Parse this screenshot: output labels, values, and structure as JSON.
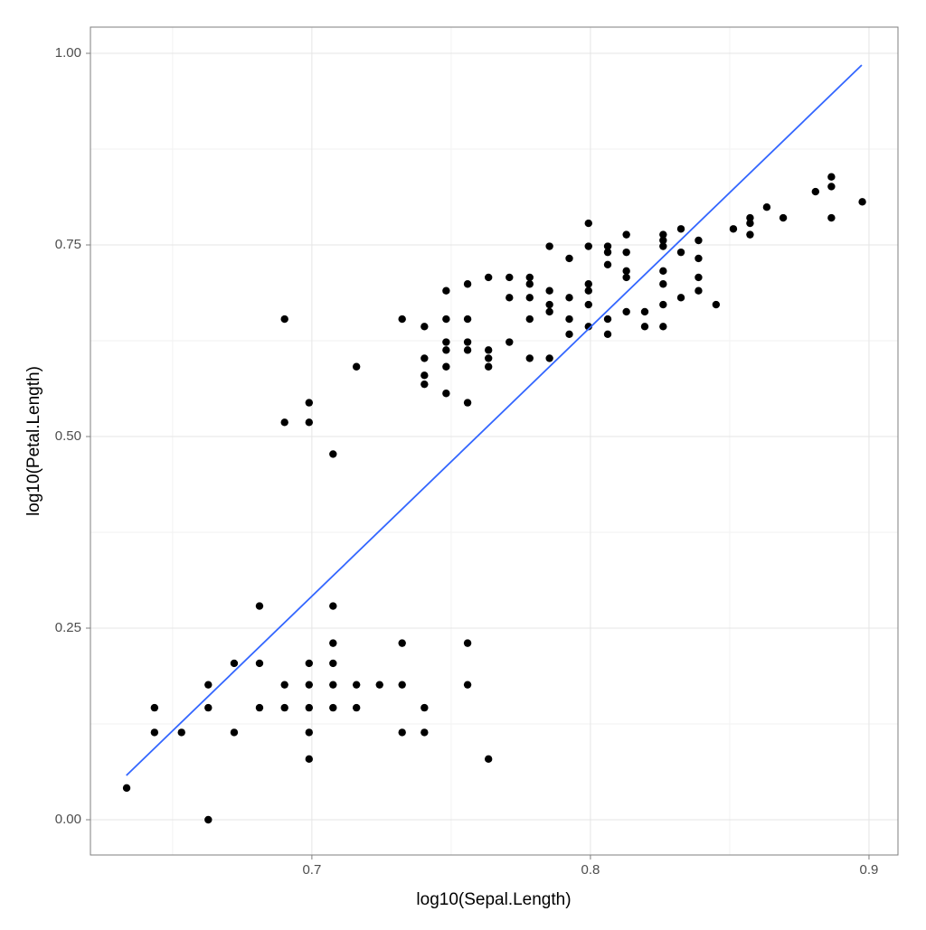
{
  "chart_data": {
    "type": "scatter",
    "x_label": "log10(Sepal.Length)",
    "y_label": "log10(Petal.Length)",
    "xlim": [
      0.6205,
      0.9104
    ],
    "ylim": [
      -0.046,
      1.0342
    ],
    "xticks": [
      0.7,
      0.8,
      0.9
    ],
    "yticks": [
      {
        "value": 0,
        "label": "0.00"
      },
      {
        "value": 0.25,
        "label": "0.25"
      },
      {
        "value": 0.5,
        "label": "0.50"
      },
      {
        "value": 0.75,
        "label": "0.75"
      },
      {
        "value": 1,
        "label": "1.00"
      }
    ],
    "xminor": [
      0.65,
      0.75,
      0.85
    ],
    "yminor": [
      0.125,
      0.375,
      0.625,
      0.875
    ],
    "grid": true,
    "color": "#000000",
    "x": [
      0.7076,
      0.6902,
      0.6721,
      0.6628,
      0.699,
      0.7324,
      0.6628,
      0.699,
      0.6435,
      0.6902,
      0.7324,
      0.6812,
      0.6812,
      0.6335,
      0.7634,
      0.7559,
      0.7324,
      0.7559,
      0.7076,
      0.6628,
      0.7076,
      0.6812,
      0.699,
      0.716,
      0.716,
      0.6721,
      0.7404,
      0.699,
      0.7404,
      0.6435,
      0.699,
      0.6532,
      0.7076,
      0.7076,
      0.7243,
      0.8451,
      0.8062,
      0.8388,
      0.7404,
      0.8129,
      0.7559,
      0.7993,
      0.6902,
      0.8195,
      0.716,
      0.699,
      0.7709,
      0.7782,
      0.7853,
      0.7482,
      0.8261,
      0.7482,
      0.7634,
      0.7924,
      0.7482,
      0.7709,
      0.7853,
      0.7993,
      0.8062,
      0.8195,
      0.8325,
      0.8261,
      0.7782,
      0.7559,
      0.7404,
      0.7404,
      0.7634,
      0.7782,
      0.7324,
      0.8261,
      0.7993,
      0.7482,
      0.7404,
      0.7853,
      0.7634,
      0.699,
      0.7482,
      0.7559,
      0.7924,
      0.7076,
      0.7559,
      0.7993,
      0.7634,
      0.8513,
      0.7993,
      0.8129,
      0.8808,
      0.6902,
      0.8633,
      0.8261,
      0.8573,
      0.8129,
      0.8062,
      0.8325,
      0.7559,
      0.8129,
      0.8865,
      0.8865,
      0.7782,
      0.8388,
      0.7482,
      0.8261,
      0.8573,
      0.7924,
      0.7853,
      0.8062,
      0.8573,
      0.8692,
      0.8976,
      0.7853,
      0.8865,
      0.8062,
      0.7782,
      0.8388,
      0.8261,
      0.8388,
      0.8325,
      0.8261,
      0.7993,
      0.8129,
      0.7924,
      0.7709
    ],
    "values": [
      0.1461,
      0.1461,
      0.1139,
      0.1761,
      0.1461,
      0.2304,
      0.1461,
      0.1761,
      0.1461,
      0.1761,
      0.1761,
      0.2041,
      0.1461,
      0.0414,
      0.0792,
      0.1761,
      0.1139,
      0.2304,
      0.1761,
      0,
      0.2304,
      0.2788,
      0.2041,
      0.1761,
      0.1461,
      0.2041,
      0.1461,
      0.0792,
      0.1139,
      0.1139,
      0.1139,
      0.1139,
      0.2788,
      0.2041,
      0.1761,
      0.6721,
      0.6532,
      0.6902,
      0.6021,
      0.6628,
      0.6532,
      0.6721,
      0.5185,
      0.6628,
      0.5911,
      0.5441,
      0.6232,
      0.6021,
      0.6721,
      0.5563,
      0.6435,
      0.6532,
      0.6128,
      0.6532,
      0.5911,
      0.6812,
      0.6021,
      0.6902,
      0.6335,
      0.6435,
      0.6812,
      0.699,
      0.6532,
      0.5441,
      0.5798,
      0.5682,
      0.5911,
      0.7076,
      0.6532,
      0.6721,
      0.6435,
      0.6128,
      0.6435,
      0.6628,
      0.6021,
      0.5185,
      0.6232,
      0.6232,
      0.6335,
      0.4771,
      0.6128,
      0.7782,
      0.7076,
      0.7709,
      0.7482,
      0.7634,
      0.8195,
      0.6532,
      0.7993,
      0.7634,
      0.7853,
      0.7076,
      0.7243,
      0.7404,
      0.699,
      0.7404,
      0.8261,
      0.8388,
      0.699,
      0.7559,
      0.6902,
      0.7559,
      0.7782,
      0.6812,
      0.6902,
      0.7482,
      0.7634,
      0.7853,
      0.8062,
      0.7482,
      0.7853,
      0.7404,
      0.6812,
      0.7324,
      0.7482,
      0.7076,
      0.7709,
      0.716,
      0.699,
      0.716,
      0.7324,
      0.7076
    ],
    "line": {
      "type": "line",
      "color": "#3366ff",
      "x": [
        0.6334,
        0.8974
      ],
      "values": [
        0.0578,
        0.9847
      ]
    }
  }
}
